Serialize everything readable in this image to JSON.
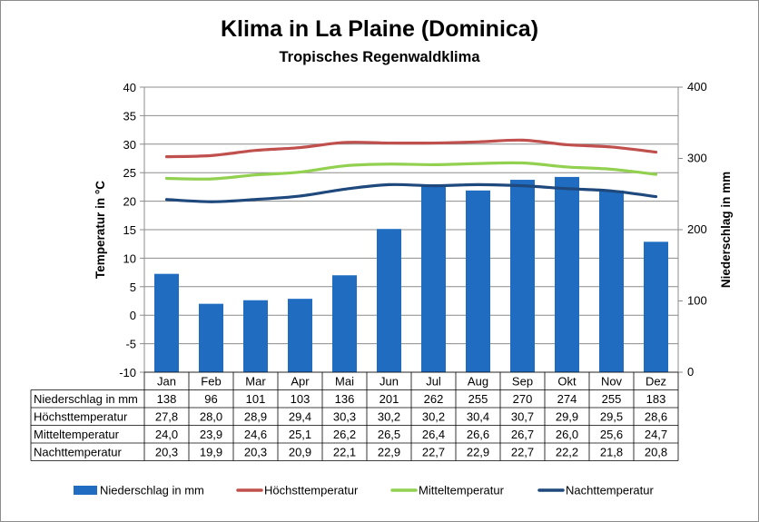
{
  "chart_data": {
    "type": "bar",
    "title": "Klima in La Plaine (Dominica)",
    "subtitle": "Tropisches Regenwaldklima",
    "ylabel_left": "Temperatur in °C",
    "ylabel_right": "Niederschlag in mm",
    "ylim_left": [
      -10,
      40
    ],
    "ylim_right": [
      0,
      400
    ],
    "yticks_left": [
      "40",
      "35",
      "30",
      "25",
      "20",
      "15",
      "10",
      "5",
      "0",
      "-5",
      "-10"
    ],
    "yticks_right": [
      "400",
      "300",
      "200",
      "100",
      "0"
    ],
    "grid": true,
    "legend_position": "bottom",
    "categories": [
      "Jan",
      "Feb",
      "Mar",
      "Apr",
      "Mai",
      "Jun",
      "Jul",
      "Aug",
      "Sep",
      "Okt",
      "Nov",
      "Dez"
    ],
    "series": [
      {
        "name": "Niederschlag in mm",
        "type": "bar",
        "axis": "right",
        "color": "#1f6cc1",
        "values": [
          138,
          96,
          101,
          103,
          136,
          201,
          262,
          255,
          270,
          274,
          255,
          183
        ],
        "labels": [
          "138",
          "96",
          "101",
          "103",
          "136",
          "201",
          "262",
          "255",
          "270",
          "274",
          "255",
          "183"
        ]
      },
      {
        "name": "Höchsttemperatur",
        "type": "line",
        "axis": "left",
        "color": "#c0504d",
        "values": [
          27.8,
          28.0,
          28.9,
          29.4,
          30.3,
          30.2,
          30.2,
          30.4,
          30.7,
          29.9,
          29.5,
          28.6
        ],
        "labels": [
          "27,8",
          "28,0",
          "28,9",
          "29,4",
          "30,3",
          "30,2",
          "30,2",
          "30,4",
          "30,7",
          "29,9",
          "29,5",
          "28,6"
        ]
      },
      {
        "name": "Mitteltemperatur",
        "type": "line",
        "axis": "left",
        "color": "#92d050",
        "values": [
          24.0,
          23.9,
          24.6,
          25.1,
          26.2,
          26.5,
          26.4,
          26.6,
          26.7,
          26.0,
          25.6,
          24.7
        ],
        "labels": [
          "24,0",
          "23,9",
          "24,6",
          "25,1",
          "26,2",
          "26,5",
          "26,4",
          "26,6",
          "26,7",
          "26,0",
          "25,6",
          "24,7"
        ]
      },
      {
        "name": "Nachttemperatur",
        "type": "line",
        "axis": "left",
        "color": "#1f497d",
        "values": [
          20.3,
          19.9,
          20.3,
          20.9,
          22.1,
          22.9,
          22.7,
          22.9,
          22.7,
          22.2,
          21.8,
          20.8
        ],
        "labels": [
          "20,3",
          "19,9",
          "20,3",
          "20,9",
          "22,1",
          "22,9",
          "22,7",
          "22,9",
          "22,7",
          "22,2",
          "21,8",
          "20,8"
        ]
      }
    ]
  }
}
